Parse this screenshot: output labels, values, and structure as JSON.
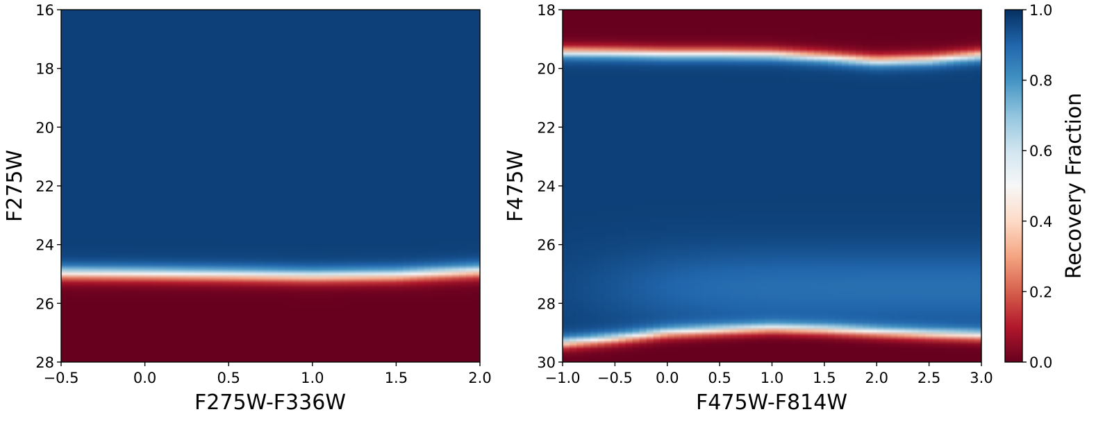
{
  "colors": {
    "colormap": "RdBu",
    "stops": [
      "#67001f",
      "#b2182b",
      "#d6604d",
      "#f4a582",
      "#fddbc7",
      "#f7f7f7",
      "#d1e5f0",
      "#92c5de",
      "#4393c3",
      "#2166ac",
      "#053061"
    ]
  },
  "colorbar": {
    "label": "Recovery Fraction",
    "range": [
      0.0,
      1.0
    ],
    "ticks": [
      "0.0",
      "0.2",
      "0.4",
      "0.6",
      "0.8",
      "1.0"
    ]
  },
  "chart_data": [
    {
      "type": "heatmap",
      "xlabel": "F275W-F336W",
      "ylabel": "F275W",
      "xlim": [
        -0.5,
        2.0
      ],
      "ylim": [
        28,
        16
      ],
      "y_inverted": true,
      "xticks": [
        "−0.5",
        "0.0",
        "0.5",
        "1.0",
        "1.5",
        "2.0"
      ],
      "yticks": [
        "16",
        "18",
        "20",
        "22",
        "24",
        "26",
        "28"
      ],
      "value_label": "Recovery Fraction",
      "completeness_50pct_boundary": {
        "x": [
          -0.5,
          0.0,
          0.5,
          1.0,
          1.5,
          2.0
        ],
        "y": [
          24.98,
          25.0,
          25.03,
          25.07,
          25.04,
          24.9
        ]
      },
      "bright_edge": null,
      "transition_width_mag": 0.6
    },
    {
      "type": "heatmap",
      "xlabel": "F475W-F814W",
      "ylabel": "F475W",
      "xlim": [
        -1.0,
        3.0
      ],
      "ylim": [
        30,
        18
      ],
      "y_inverted": true,
      "xticks": [
        "−1.0",
        "−0.5",
        "0.0",
        "0.5",
        "1.0",
        "1.5",
        "2.0",
        "2.5",
        "3.0"
      ],
      "yticks": [
        "18",
        "20",
        "22",
        "24",
        "26",
        "28",
        "30"
      ],
      "value_label": "Recovery Fraction",
      "saturation_50pct_boundary": {
        "x": [
          -1.0,
          -0.5,
          0.0,
          0.5,
          1.0,
          1.5,
          2.0,
          2.5,
          3.0
        ],
        "y": [
          19.45,
          19.47,
          19.5,
          19.5,
          19.52,
          19.62,
          19.75,
          19.7,
          19.55
        ]
      },
      "completeness_50pct_boundary": {
        "x": [
          -1.0,
          -0.5,
          0.0,
          0.5,
          1.0,
          1.5,
          2.0,
          2.5,
          3.0
        ],
        "y": [
          29.35,
          29.2,
          29.0,
          28.92,
          28.85,
          28.9,
          28.98,
          29.05,
          29.1
        ]
      },
      "transition_width_mag": 0.5,
      "interior_dip": {
        "y": 27.5,
        "value": 0.88
      }
    }
  ]
}
